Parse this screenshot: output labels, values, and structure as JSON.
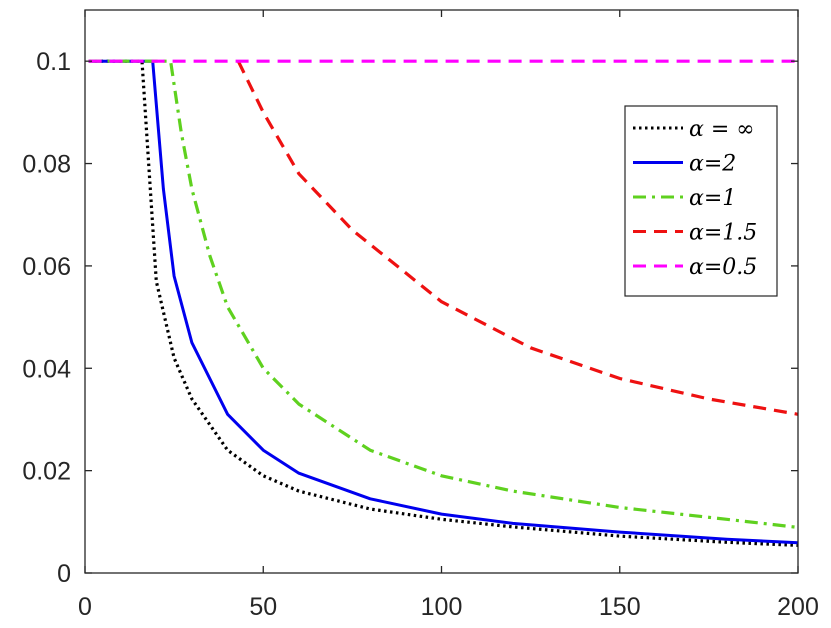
{
  "chart_data": {
    "type": "line",
    "title": "",
    "xlabel": "",
    "ylabel": "",
    "xlim": [
      0,
      200
    ],
    "ylim": [
      0,
      0.11
    ],
    "x_ticks": [
      0,
      50,
      100,
      150,
      200
    ],
    "x_tick_labels": [
      "0",
      "50",
      "100",
      "150",
      "200"
    ],
    "y_ticks": [
      0,
      0.02,
      0.04,
      0.06,
      0.08,
      0.1
    ],
    "y_tick_labels": [
      "0",
      "0.02",
      "0.04",
      "0.06",
      "0.08",
      "0.1"
    ],
    "grid": false,
    "legend_position": "top-right",
    "series": [
      {
        "name": "α = ∞",
        "color": "#000000",
        "style": "dotted",
        "x": [
          1,
          16,
          20,
          25,
          30,
          40,
          50,
          60,
          80,
          100,
          120,
          150,
          180,
          200
        ],
        "y": [
          0.1,
          0.1,
          0.057,
          0.042,
          0.034,
          0.024,
          0.019,
          0.016,
          0.0125,
          0.0105,
          0.009,
          0.0072,
          0.006,
          0.0054
        ]
      },
      {
        "name": "α=2",
        "color": "#0000ee",
        "style": "solid",
        "x": [
          1,
          19,
          22,
          25,
          30,
          40,
          50,
          60,
          80,
          100,
          120,
          150,
          180,
          200
        ],
        "y": [
          0.1,
          0.1,
          0.075,
          0.058,
          0.045,
          0.031,
          0.024,
          0.0195,
          0.0145,
          0.0115,
          0.0097,
          0.008,
          0.0066,
          0.0059
        ]
      },
      {
        "name": "α=1",
        "color": "#5fd11f",
        "style": "dashdot",
        "x": [
          1,
          24,
          27,
          30,
          35,
          40,
          50,
          60,
          80,
          100,
          120,
          150,
          180,
          200
        ],
        "y": [
          0.1,
          0.1,
          0.086,
          0.075,
          0.062,
          0.052,
          0.04,
          0.033,
          0.024,
          0.019,
          0.016,
          0.0128,
          0.0105,
          0.0089
        ]
      },
      {
        "name": "α=1.5",
        "color": "#ee1111",
        "style": "dashed",
        "x": [
          43,
          50,
          60,
          75,
          100,
          125,
          150,
          175,
          200
        ],
        "y": [
          0.1,
          0.09,
          0.078,
          0.067,
          0.053,
          0.044,
          0.038,
          0.034,
          0.031
        ]
      },
      {
        "name": "α=0.5",
        "color": "#ff00ff",
        "style": "dashed",
        "x": [
          1,
          200
        ],
        "y": [
          0.1,
          0.1
        ]
      }
    ]
  }
}
